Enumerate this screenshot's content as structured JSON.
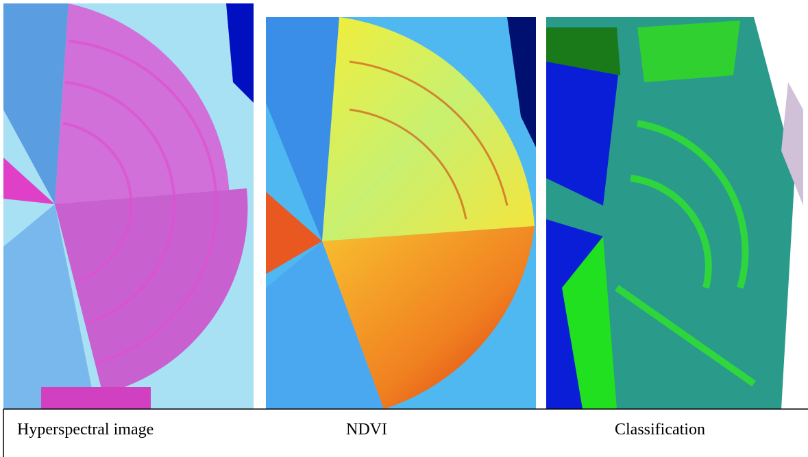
{
  "captions": [
    "Hyperspectral image",
    "NDVI",
    "Classification"
  ]
}
